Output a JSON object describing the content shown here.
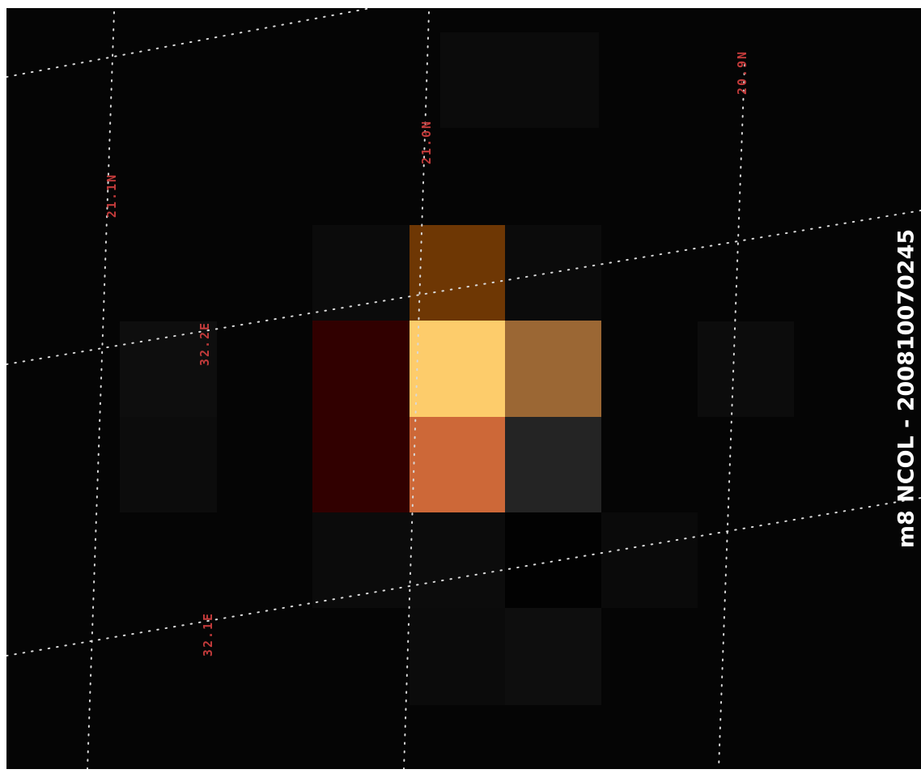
{
  "title": "m8 NCOL - 200810070245",
  "grid_labels": {
    "lat_21_1": "21.1N",
    "lat_21_0": "21.0N",
    "lat_20_9": "20.9N",
    "lon_32_2": "32.2E",
    "lon_32_1": "32.1E"
  },
  "pixel_colors": {
    "peak": "#fdcc6b",
    "hot": "#cd6838",
    "warm": "#9b6734",
    "amber": "#6e3704",
    "dark_red": "#310000",
    "dim_gray": "#242424",
    "faint": "#0e0e0e",
    "background": "#050505"
  },
  "grid_color": "#d9d9d9",
  "label_color": "#c33b3b"
}
